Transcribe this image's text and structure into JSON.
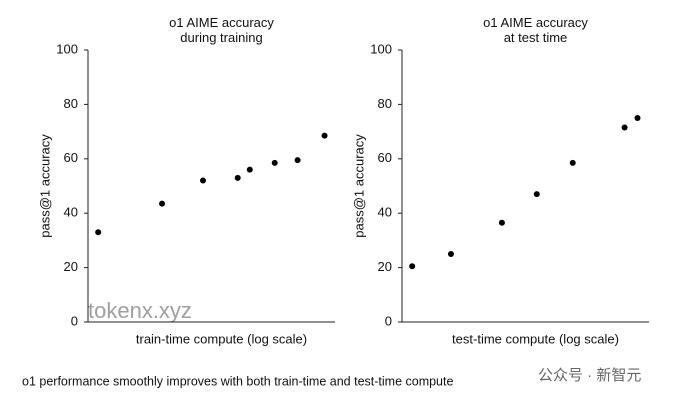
{
  "chart_data": [
    {
      "type": "scatter",
      "title": "o1 AIME accuracy\nduring training",
      "xlabel": "train-time compute (log scale)",
      "ylabel": "pass@1 accuracy",
      "xscale": "log",
      "xlim": [
        0.087,
        10.5
      ],
      "ylim": [
        0,
        100
      ],
      "yticks": [
        0,
        20,
        40,
        60,
        80,
        100
      ],
      "color": "#000000",
      "x": [
        0.106,
        0.366,
        0.81,
        1.59,
        2.01,
        3.26,
        5.08,
        8.57
      ],
      "values": [
        33,
        43.5,
        52,
        53,
        56,
        58.5,
        59.5,
        68.5
      ]
    },
    {
      "type": "scatter",
      "title": "o1 AIME accuracy\nat test time",
      "xlabel": "test-time compute (log scale)",
      "ylabel": "pass@1 accuracy",
      "xscale": "log",
      "xlim": [
        0.087,
        10.5
      ],
      "ylim": [
        0,
        100
      ],
      "yticks": [
        0,
        20,
        40,
        60,
        80,
        100
      ],
      "color": "#000000",
      "x": [
        0.106,
        0.225,
        0.605,
        1.19,
        2.39,
        6.54,
        8.4
      ],
      "values": [
        20.5,
        25,
        36.5,
        47,
        58.5,
        71.5,
        75
      ]
    }
  ],
  "caption": "o1 performance smoothly improves with both train-time and test-time compute",
  "watermarks": [
    "tokenx.xyz",
    "公众号 · 新智元"
  ]
}
